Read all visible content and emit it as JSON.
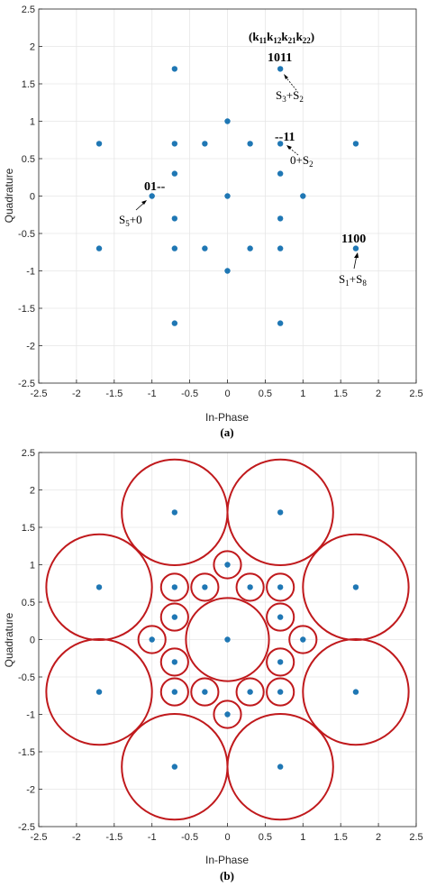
{
  "chart_data": [
    {
      "type": "scatter",
      "panel_label": "(a)",
      "xlabel": "In-Phase",
      "ylabel": "Quadrature",
      "xlim": [
        -2.5,
        2.5
      ],
      "ylim": [
        -2.5,
        2.5
      ],
      "xticks": [
        "-2.5",
        "-2",
        "-1.5",
        "-1",
        "-0.5",
        "0",
        "0.5",
        "1",
        "1.5",
        "2",
        "2.5"
      ],
      "yticks": [
        "2.5",
        "2",
        "1.5",
        "1",
        "0.5",
        "0",
        "-0.5",
        "-1",
        "-1.5",
        "-2",
        "-2.5"
      ],
      "grid": true,
      "marker_color": "#1f77b4",
      "points": [
        {
          "x": -0.7,
          "y": 1.7
        },
        {
          "x": 0.7,
          "y": 1.7
        },
        {
          "x": 0,
          "y": 1
        },
        {
          "x": -1.7,
          "y": 0.7
        },
        {
          "x": -0.7,
          "y": 0.7
        },
        {
          "x": -0.3,
          "y": 0.7
        },
        {
          "x": 0.3,
          "y": 0.7
        },
        {
          "x": 0.7,
          "y": 0.7
        },
        {
          "x": 1.7,
          "y": 0.7
        },
        {
          "x": -0.7,
          "y": 0.3
        },
        {
          "x": 0.7,
          "y": 0.3
        },
        {
          "x": -1,
          "y": 0
        },
        {
          "x": 0,
          "y": 0
        },
        {
          "x": 1,
          "y": 0
        },
        {
          "x": -0.7,
          "y": -0.3
        },
        {
          "x": 0.7,
          "y": -0.3
        },
        {
          "x": -1.7,
          "y": -0.7
        },
        {
          "x": -0.7,
          "y": -0.7
        },
        {
          "x": -0.3,
          "y": -0.7
        },
        {
          "x": 0.3,
          "y": -0.7
        },
        {
          "x": 0.7,
          "y": -0.7
        },
        {
          "x": 1.7,
          "y": -0.7
        },
        {
          "x": 0,
          "y": -1
        },
        {
          "x": -0.7,
          "y": -1.7
        },
        {
          "x": 0.7,
          "y": -1.7
        }
      ],
      "annotations": {
        "header": "(k11k12k21k22)",
        "a1_code": "1011",
        "a1_label": "S3+S2",
        "a2_code": "--11",
        "a2_label": "0+S2",
        "a3_code": "01--",
        "a3_label": "S5+0",
        "a4_code": "1100",
        "a4_label": "S1+S8"
      }
    },
    {
      "type": "scatter",
      "panel_label": "(b)",
      "xlabel": "In-Phase",
      "ylabel": "Quadrature",
      "xlim": [
        -2.5,
        2.5
      ],
      "ylim": [
        -2.5,
        2.5
      ],
      "xticks": [
        "-2.5",
        "-2",
        "-1.5",
        "-1",
        "-0.5",
        "0",
        "0.5",
        "1",
        "1.5",
        "2",
        "2.5"
      ],
      "yticks": [
        "2.5",
        "2",
        "1.5",
        "1",
        "0.5",
        "0",
        "-0.5",
        "-1",
        "-1.5",
        "-2",
        "-2.5"
      ],
      "grid": true,
      "marker_color": "#1f77b4",
      "circle_color": "#c0191c",
      "points": [
        {
          "x": -0.7,
          "y": 1.7,
          "r": 0.7
        },
        {
          "x": 0.7,
          "y": 1.7,
          "r": 0.7
        },
        {
          "x": -1.7,
          "y": 0.7,
          "r": 0.7
        },
        {
          "x": 1.7,
          "y": 0.7,
          "r": 0.7
        },
        {
          "x": -1.7,
          "y": -0.7,
          "r": 0.7
        },
        {
          "x": 1.7,
          "y": -0.7,
          "r": 0.7
        },
        {
          "x": -0.7,
          "y": -1.7,
          "r": 0.7
        },
        {
          "x": 0.7,
          "y": -1.7,
          "r": 0.7
        },
        {
          "x": 0,
          "y": 0,
          "r": 0.55
        },
        {
          "x": 0,
          "y": 1,
          "r": 0.18
        },
        {
          "x": 0,
          "y": -1,
          "r": 0.18
        },
        {
          "x": -1,
          "y": 0,
          "r": 0.18
        },
        {
          "x": 1,
          "y": 0,
          "r": 0.18
        },
        {
          "x": -0.7,
          "y": 0.7,
          "r": 0.18
        },
        {
          "x": -0.3,
          "y": 0.7,
          "r": 0.18
        },
        {
          "x": 0.3,
          "y": 0.7,
          "r": 0.18
        },
        {
          "x": 0.7,
          "y": 0.7,
          "r": 0.18
        },
        {
          "x": -0.7,
          "y": -0.7,
          "r": 0.18
        },
        {
          "x": -0.3,
          "y": -0.7,
          "r": 0.18
        },
        {
          "x": 0.3,
          "y": -0.7,
          "r": 0.18
        },
        {
          "x": 0.7,
          "y": -0.7,
          "r": 0.18
        },
        {
          "x": -0.7,
          "y": 0.3,
          "r": 0.18
        },
        {
          "x": 0.7,
          "y": 0.3,
          "r": 0.18
        },
        {
          "x": -0.7,
          "y": -0.3,
          "r": 0.18
        },
        {
          "x": 0.7,
          "y": -0.3,
          "r": 0.18
        }
      ]
    }
  ]
}
